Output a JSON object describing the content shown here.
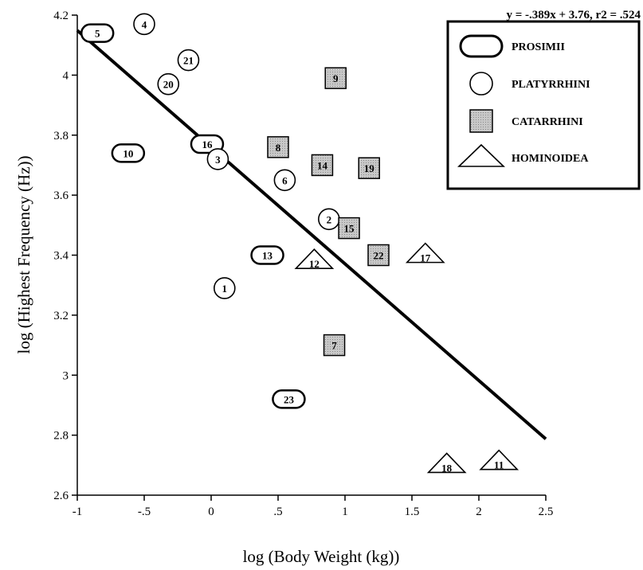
{
  "chart_data": {
    "type": "scatter",
    "title": "",
    "equation": "y = -.389x + 3.76, r2 = .524",
    "xlabel": "log (Body Weight (kg))",
    "ylabel": "log (Highest Frequency (Hz))",
    "xlim": [
      -1,
      2.5
    ],
    "ylim": [
      2.6,
      4.2
    ],
    "x_ticks": [
      -1,
      -0.5,
      0,
      0.5,
      1,
      1.5,
      2,
      2.5
    ],
    "x_tick_labels": [
      "-1",
      "-.5",
      "0",
      ".5",
      "1",
      "1.5",
      "2",
      "2.5"
    ],
    "y_ticks": [
      2.6,
      2.8,
      3,
      3.2,
      3.4,
      3.6,
      3.8,
      4,
      4.2
    ],
    "y_tick_labels": [
      "2.6",
      "2.8",
      "3",
      "3.2",
      "3.4",
      "3.6",
      "3.8",
      "4",
      "4.2"
    ],
    "grid": false,
    "legend_position": "top-right",
    "regression": {
      "slope": -0.389,
      "intercept": 3.76
    },
    "series": [
      {
        "name": "PROSIMII",
        "marker": "rounded-rect",
        "points": [
          {
            "label": "5",
            "x": -0.85,
            "y": 4.14
          },
          {
            "label": "10",
            "x": -0.62,
            "y": 3.74
          },
          {
            "label": "16",
            "x": -0.03,
            "y": 3.77
          },
          {
            "label": "13",
            "x": 0.42,
            "y": 3.4
          },
          {
            "label": "23",
            "x": 0.58,
            "y": 2.92
          }
        ]
      },
      {
        "name": "PLATYRRHINI",
        "marker": "circle",
        "points": [
          {
            "label": "4",
            "x": -0.5,
            "y": 4.17
          },
          {
            "label": "21",
            "x": -0.17,
            "y": 4.05
          },
          {
            "label": "20",
            "x": -0.32,
            "y": 3.97
          },
          {
            "label": "3",
            "x": 0.05,
            "y": 3.72
          },
          {
            "label": "6",
            "x": 0.55,
            "y": 3.65
          },
          {
            "label": "2",
            "x": 0.88,
            "y": 3.52
          },
          {
            "label": "1",
            "x": 0.1,
            "y": 3.29
          }
        ]
      },
      {
        "name": "CATARRHINI",
        "marker": "shaded-square",
        "points": [
          {
            "label": "9",
            "x": 0.93,
            "y": 3.99
          },
          {
            "label": "8",
            "x": 0.5,
            "y": 3.76
          },
          {
            "label": "14",
            "x": 0.83,
            "y": 3.7
          },
          {
            "label": "19",
            "x": 1.18,
            "y": 3.69
          },
          {
            "label": "15",
            "x": 1.03,
            "y": 3.49
          },
          {
            "label": "22",
            "x": 1.25,
            "y": 3.4
          },
          {
            "label": "7",
            "x": 0.92,
            "y": 3.1
          }
        ]
      },
      {
        "name": "HOMINOIDEA",
        "marker": "triangle",
        "points": [
          {
            "label": "12",
            "x": 0.77,
            "y": 3.38
          },
          {
            "label": "17",
            "x": 1.6,
            "y": 3.4
          },
          {
            "label": "18",
            "x": 1.76,
            "y": 2.7
          },
          {
            "label": "11",
            "x": 2.15,
            "y": 2.71
          }
        ]
      }
    ]
  }
}
